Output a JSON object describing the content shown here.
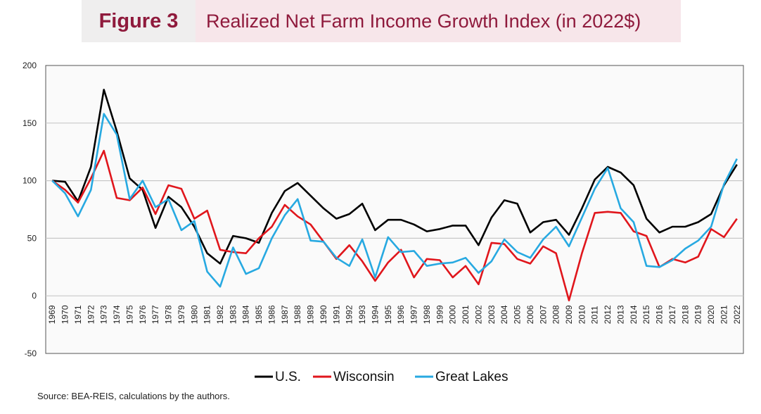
{
  "header": {
    "figure_label": "Figure 3",
    "title": "Realized Net Farm Income Growth Index (in 2022$)"
  },
  "source": "Source: BEA-REIS, calculations by the authors.",
  "chart_data": {
    "type": "line",
    "title": "Realized Net Farm Income Growth Index (in 2022$)",
    "ylim": [
      -50,
      200
    ],
    "yticks": [
      -50,
      0,
      50,
      100,
      150,
      200
    ],
    "grid": true,
    "legend": "bottom",
    "x": [
      1969,
      1970,
      1971,
      1972,
      1973,
      1974,
      1975,
      1976,
      1977,
      1978,
      1979,
      1980,
      1981,
      1982,
      1983,
      1984,
      1985,
      1986,
      1987,
      1988,
      1989,
      1990,
      1991,
      1992,
      1993,
      1994,
      1995,
      1996,
      1997,
      1998,
      1999,
      2000,
      2001,
      2002,
      2003,
      2004,
      2005,
      2006,
      2007,
      2008,
      2009,
      2010,
      2011,
      2012,
      2013,
      2014,
      2015,
      2016,
      2017,
      2018,
      2019,
      2020,
      2021,
      2022
    ],
    "series": [
      {
        "name": "U.S.",
        "color": "#000000",
        "values": [
          100,
          99,
          82,
          112,
          179,
          143,
          102,
          92,
          59,
          86,
          77,
          60,
          37,
          28,
          52,
          50,
          46,
          72,
          91,
          98,
          87,
          76,
          67,
          71,
          80,
          57,
          66,
          66,
          62,
          56,
          58,
          61,
          61,
          44,
          68,
          83,
          80,
          55,
          64,
          66,
          53,
          76,
          101,
          112,
          107,
          96,
          67,
          55,
          60,
          60,
          64,
          71,
          96,
          114
        ]
      },
      {
        "name": "Wisconsin",
        "color": "#e0161c",
        "values": [
          100,
          92,
          81,
          102,
          126,
          85,
          83,
          94,
          71,
          96,
          93,
          67,
          74,
          40,
          38,
          37,
          50,
          60,
          79,
          69,
          62,
          47,
          32,
          44,
          30,
          13,
          29,
          40,
          16,
          32,
          31,
          16,
          26,
          10,
          46,
          45,
          32,
          28,
          43,
          37,
          -4,
          37,
          72,
          73,
          72,
          56,
          52,
          25,
          32,
          29,
          34,
          58,
          51,
          67
        ]
      },
      {
        "name": "Great Lakes",
        "color": "#27a9e1",
        "values": [
          100,
          89,
          69,
          92,
          158,
          140,
          84,
          100,
          77,
          84,
          57,
          65,
          21,
          8,
          42,
          19,
          24,
          50,
          70,
          84,
          48,
          47,
          33,
          26,
          49,
          16,
          51,
          38,
          39,
          26,
          28,
          29,
          33,
          20,
          30,
          49,
          38,
          33,
          49,
          60,
          43,
          68,
          93,
          111,
          76,
          64,
          26,
          25,
          31,
          41,
          48,
          60,
          97,
          119
        ]
      }
    ]
  }
}
